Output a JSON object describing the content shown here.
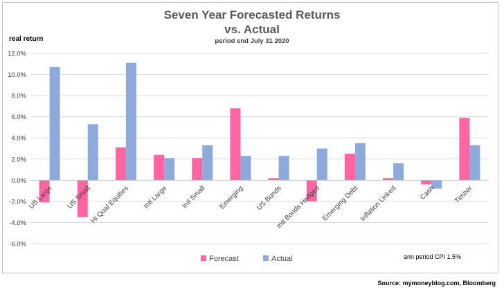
{
  "colors": {
    "forecast": "#ff66a1",
    "actual": "#8ea9db",
    "grid": "#d9d9d9",
    "axis": "#bfbfbf"
  },
  "labels": {
    "title_line1": "Seven Year Forecasted Returns",
    "title_line2": "vs. Actual",
    "subtitle": "period end July 31 2020",
    "ylabel": "real return",
    "note": "ann period CPI 1.5%",
    "source": "Source: mymoneyblog.com, Bloomberg"
  },
  "chart_data": {
    "type": "bar",
    "title": "Seven Year Forecasted Returns vs. Actual",
    "subtitle": "period end July 31 2020",
    "ylabel": "real return",
    "ylim": [
      -6,
      12
    ],
    "ytick_step": 2,
    "yticks": [
      "12.0%",
      "10.0%",
      "8.0%",
      "6.0%",
      "4.0%",
      "2.0%",
      "0.0%",
      "-2.0%",
      "-4.0%",
      "-6.0%"
    ],
    "grid": true,
    "legend_position": "bottom",
    "categories": [
      "US Large",
      "US Small",
      "Hi Qual Equities",
      "Intl Large",
      "Intl Small",
      "Emerging",
      "US Bonds",
      "Intl Bonds Hedged",
      "Emerging Debt",
      "Inflation Linked",
      "Cash",
      "Timber"
    ],
    "series": [
      {
        "name": "Forecast",
        "values": [
          -2.1,
          -3.5,
          3.1,
          2.4,
          2.1,
          6.8,
          0.2,
          -2.0,
          2.5,
          0.2,
          -0.4,
          5.9
        ]
      },
      {
        "name": "Actual",
        "values": [
          10.7,
          5.3,
          11.1,
          2.1,
          3.3,
          2.3,
          2.3,
          3.0,
          3.5,
          1.6,
          -0.8,
          3.3
        ]
      }
    ]
  }
}
